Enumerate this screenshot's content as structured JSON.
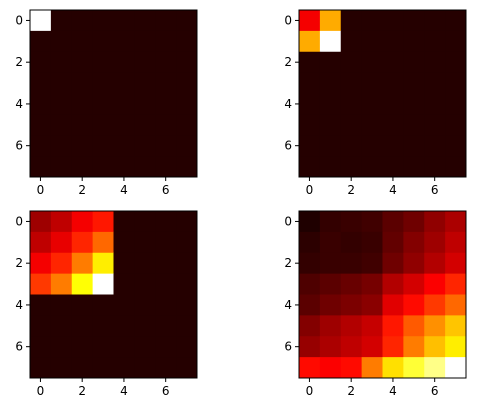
{
  "chart_data": [
    {
      "type": "heatmap",
      "colormap": "hot",
      "title": "",
      "xlabel": "",
      "ylabel": "",
      "xlim": [
        -0.5,
        7.5
      ],
      "ylim": [
        7.5,
        -0.5
      ],
      "xticks": [
        0,
        2,
        4,
        6
      ],
      "yticks": [
        0,
        2,
        4,
        6
      ],
      "grid": false,
      "values": [
        [
          1.0,
          0.04,
          0.04,
          0.04,
          0.04,
          0.04,
          0.04,
          0.04
        ],
        [
          0.04,
          0.04,
          0.04,
          0.04,
          0.04,
          0.04,
          0.04,
          0.04
        ],
        [
          0.04,
          0.04,
          0.04,
          0.04,
          0.04,
          0.04,
          0.04,
          0.04
        ],
        [
          0.04,
          0.04,
          0.04,
          0.04,
          0.04,
          0.04,
          0.04,
          0.04
        ],
        [
          0.04,
          0.04,
          0.04,
          0.04,
          0.04,
          0.04,
          0.04,
          0.04
        ],
        [
          0.04,
          0.04,
          0.04,
          0.04,
          0.04,
          0.04,
          0.04,
          0.04
        ],
        [
          0.04,
          0.04,
          0.04,
          0.04,
          0.04,
          0.04,
          0.04,
          0.04
        ],
        [
          0.04,
          0.04,
          0.04,
          0.04,
          0.04,
          0.04,
          0.04,
          0.04
        ]
      ]
    },
    {
      "type": "heatmap",
      "colormap": "hot",
      "title": "",
      "xlabel": "",
      "ylabel": "",
      "xlim": [
        -0.5,
        7.5
      ],
      "ylim": [
        7.5,
        -0.5
      ],
      "xticks": [
        0,
        2,
        4,
        6
      ],
      "yticks": [
        0,
        2,
        4,
        6
      ],
      "grid": false,
      "values": [
        [
          0.35,
          0.62,
          0.04,
          0.04,
          0.04,
          0.04,
          0.04,
          0.04
        ],
        [
          0.62,
          1.0,
          0.04,
          0.04,
          0.04,
          0.04,
          0.04,
          0.04
        ],
        [
          0.04,
          0.04,
          0.04,
          0.04,
          0.04,
          0.04,
          0.04,
          0.04
        ],
        [
          0.04,
          0.04,
          0.04,
          0.04,
          0.04,
          0.04,
          0.04,
          0.04
        ],
        [
          0.04,
          0.04,
          0.04,
          0.04,
          0.04,
          0.04,
          0.04,
          0.04
        ],
        [
          0.04,
          0.04,
          0.04,
          0.04,
          0.04,
          0.04,
          0.04,
          0.04
        ],
        [
          0.04,
          0.04,
          0.04,
          0.04,
          0.04,
          0.04,
          0.04,
          0.04
        ],
        [
          0.04,
          0.04,
          0.04,
          0.04,
          0.04,
          0.04,
          0.04,
          0.04
        ]
      ]
    },
    {
      "type": "heatmap",
      "colormap": "hot",
      "title": "",
      "xlabel": "",
      "ylabel": "",
      "xlim": [
        -0.5,
        7.5
      ],
      "ylim": [
        7.5,
        -0.5
      ],
      "xticks": [
        0,
        2,
        4,
        6
      ],
      "yticks": [
        0,
        2,
        4,
        6
      ],
      "grid": false,
      "values": [
        [
          0.22,
          0.27,
          0.35,
          0.4,
          0.04,
          0.04,
          0.04,
          0.04
        ],
        [
          0.27,
          0.33,
          0.42,
          0.52,
          0.04,
          0.04,
          0.04,
          0.04
        ],
        [
          0.35,
          0.42,
          0.55,
          0.72,
          0.04,
          0.04,
          0.04,
          0.04
        ],
        [
          0.45,
          0.55,
          0.75,
          1.0,
          0.04,
          0.04,
          0.04,
          0.04
        ],
        [
          0.04,
          0.04,
          0.04,
          0.04,
          0.04,
          0.04,
          0.04,
          0.04
        ],
        [
          0.04,
          0.04,
          0.04,
          0.04,
          0.04,
          0.04,
          0.04,
          0.04
        ],
        [
          0.04,
          0.04,
          0.04,
          0.04,
          0.04,
          0.04,
          0.04,
          0.04
        ],
        [
          0.04,
          0.04,
          0.04,
          0.04,
          0.04,
          0.04,
          0.04,
          0.04
        ]
      ]
    },
    {
      "type": "heatmap",
      "colormap": "hot",
      "title": "",
      "xlabel": "",
      "ylabel": "",
      "xlim": [
        -0.5,
        7.5
      ],
      "ylim": [
        7.5,
        -0.5
      ],
      "xticks": [
        0,
        2,
        4,
        6
      ],
      "yticks": [
        0,
        2,
        4,
        6
      ],
      "grid": false,
      "values": [
        [
          0.03,
          0.06,
          0.07,
          0.08,
          0.12,
          0.15,
          0.2,
          0.24
        ],
        [
          0.05,
          0.07,
          0.06,
          0.07,
          0.13,
          0.18,
          0.22,
          0.27
        ],
        [
          0.06,
          0.07,
          0.07,
          0.08,
          0.15,
          0.2,
          0.25,
          0.3
        ],
        [
          0.1,
          0.12,
          0.14,
          0.16,
          0.25,
          0.3,
          0.36,
          0.42
        ],
        [
          0.12,
          0.15,
          0.17,
          0.19,
          0.32,
          0.38,
          0.45,
          0.52
        ],
        [
          0.18,
          0.22,
          0.25,
          0.28,
          0.4,
          0.5,
          0.58,
          0.66
        ],
        [
          0.21,
          0.24,
          0.27,
          0.3,
          0.42,
          0.55,
          0.65,
          0.72
        ],
        [
          0.38,
          0.36,
          0.38,
          0.55,
          0.7,
          0.8,
          0.88,
          1.0
        ]
      ]
    }
  ]
}
